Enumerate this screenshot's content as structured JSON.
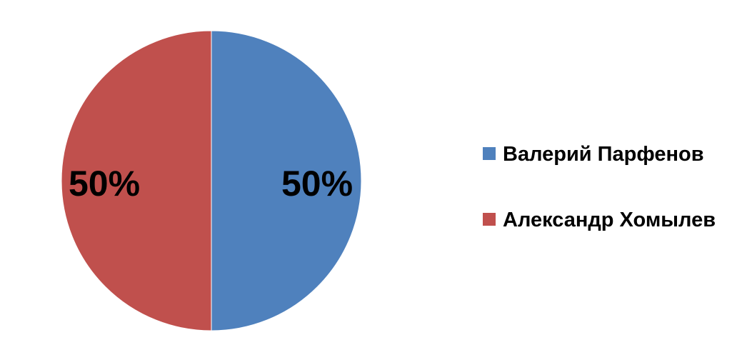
{
  "chart_data": {
    "type": "pie",
    "slices": [
      {
        "label": "Валерий Парфенов",
        "value": 50,
        "display": "50%",
        "color": "#4F81BD"
      },
      {
        "label": "Александр Хомылев",
        "value": 50,
        "display": "50%",
        "color": "#C0504D"
      }
    ],
    "legend_position": "right"
  }
}
